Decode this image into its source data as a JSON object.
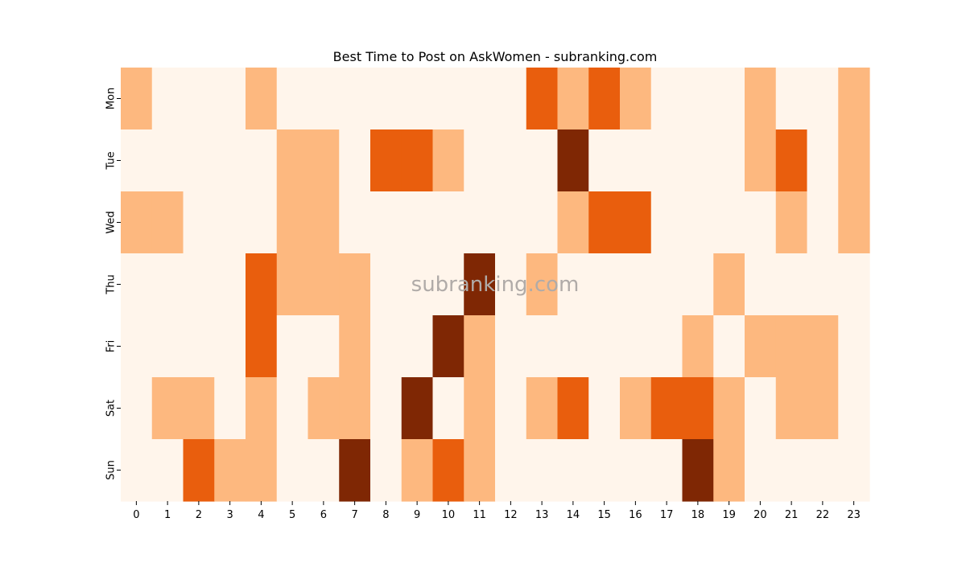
{
  "chart_data": {
    "type": "heatmap",
    "title": "Best Time to Post on AskWomen - subranking.com",
    "watermark": "subranking.com",
    "x_categories": [
      "0",
      "1",
      "2",
      "3",
      "4",
      "5",
      "6",
      "7",
      "8",
      "9",
      "10",
      "11",
      "12",
      "13",
      "14",
      "15",
      "16",
      "17",
      "18",
      "19",
      "20",
      "21",
      "22",
      "23"
    ],
    "y_categories": [
      "Mon",
      "Tue",
      "Wed",
      "Thu",
      "Fri",
      "Sat",
      "Sun"
    ],
    "xlabel": "",
    "ylabel": "",
    "colorbar": false,
    "colors": {
      "0": "#fff5eb",
      "1": "#fdb87f",
      "2": "#e95e0d",
      "3": "#7f2704"
    },
    "values": [
      [
        1,
        0,
        0,
        0,
        1,
        0,
        0,
        0,
        0,
        0,
        0,
        0,
        0,
        2,
        1,
        2,
        1,
        0,
        0,
        0,
        1,
        0,
        0,
        1
      ],
      [
        0,
        0,
        0,
        0,
        0,
        1,
        1,
        0,
        2,
        2,
        1,
        0,
        0,
        0,
        3,
        0,
        0,
        0,
        0,
        0,
        1,
        2,
        0,
        1
      ],
      [
        1,
        1,
        0,
        0,
        0,
        1,
        1,
        0,
        0,
        0,
        0,
        0,
        0,
        0,
        1,
        2,
        2,
        0,
        0,
        0,
        0,
        1,
        0,
        1
      ],
      [
        0,
        0,
        0,
        0,
        2,
        1,
        1,
        1,
        0,
        0,
        0,
        3,
        0,
        1,
        0,
        0,
        0,
        0,
        0,
        1,
        0,
        0,
        0,
        0
      ],
      [
        0,
        0,
        0,
        0,
        2,
        0,
        0,
        1,
        0,
        0,
        3,
        1,
        0,
        0,
        0,
        0,
        0,
        0,
        1,
        0,
        1,
        1,
        1,
        0
      ],
      [
        0,
        1,
        1,
        0,
        1,
        0,
        1,
        1,
        0,
        3,
        0,
        1,
        0,
        1,
        2,
        0,
        1,
        2,
        2,
        1,
        0,
        1,
        1,
        0
      ],
      [
        0,
        0,
        2,
        1,
        1,
        0,
        0,
        3,
        0,
        1,
        2,
        1,
        0,
        0,
        0,
        0,
        0,
        0,
        3,
        1,
        0,
        0,
        0,
        0
      ]
    ]
  }
}
